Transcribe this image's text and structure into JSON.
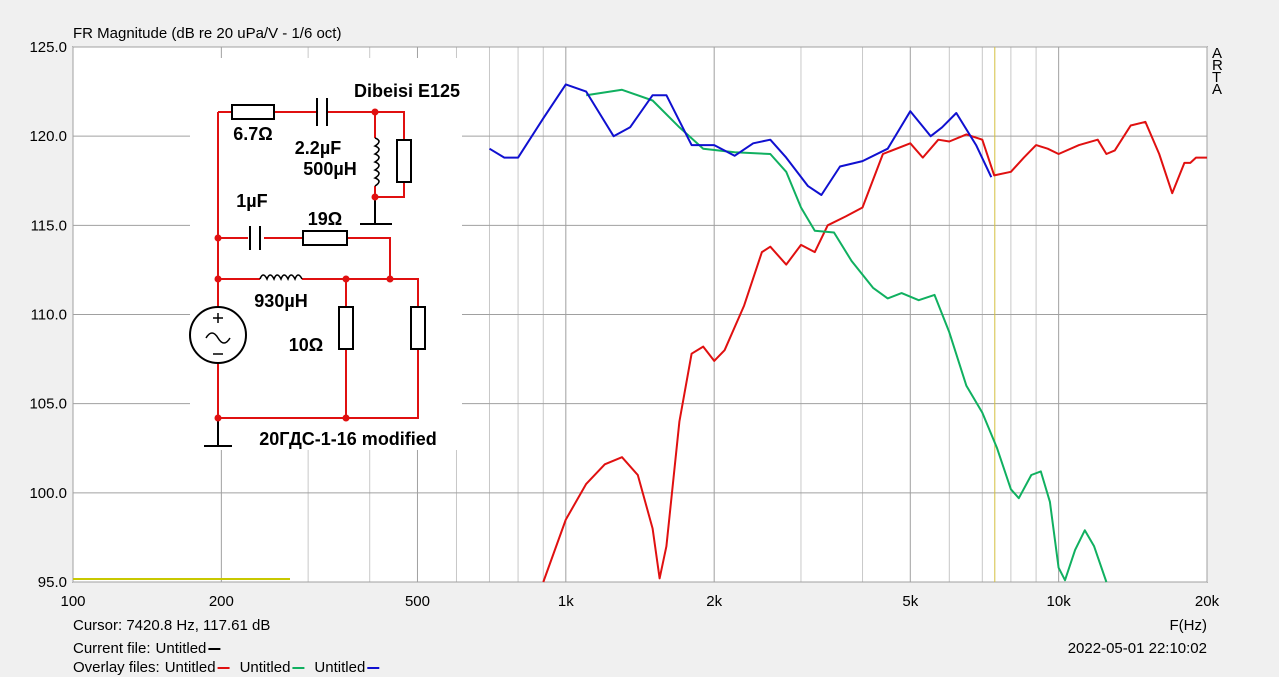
{
  "chart_data": {
    "type": "line",
    "title": "FR Magnitude (dB re 20 uPa/V - 1/6 oct)",
    "xlabel": "F(Hz)",
    "xscale": "log",
    "xlim": [
      100,
      20000
    ],
    "ylim": [
      95,
      125
    ],
    "xticks": [
      100,
      200,
      500,
      {
        "value": 1000,
        "label": "1k"
      },
      {
        "value": 2000,
        "label": "2k"
      },
      {
        "value": 5000,
        "label": "5k"
      },
      {
        "value": 10000,
        "label": "10k"
      },
      {
        "value": 20000,
        "label": "20k"
      }
    ],
    "x_minor_grid": [
      300,
      400,
      600,
      700,
      800,
      900,
      3000,
      4000,
      6000,
      7000,
      8000,
      9000
    ],
    "yticks": [
      {
        "value": 95,
        "label": "95.0"
      },
      {
        "value": 100,
        "label": "100.0"
      },
      {
        "value": 105,
        "label": "105.0"
      },
      {
        "value": 110,
        "label": "110.0"
      },
      {
        "value": 115,
        "label": "115.0"
      },
      {
        "value": 120,
        "label": "120.0"
      },
      {
        "value": 125,
        "label": "125.0"
      }
    ],
    "grid": true,
    "cursor_x": 7420.8,
    "cursor_color": "#d4c040",
    "series": [
      {
        "name": "Untitled",
        "color": "#e01010",
        "x": [
          900,
          1000,
          1100,
          1200,
          1300,
          1400,
          1500,
          1550,
          1600,
          1700,
          1800,
          1900,
          2000,
          2100,
          2300,
          2500,
          2600,
          2800,
          3000,
          3200,
          3400,
          3700,
          4000,
          4400,
          5000,
          5300,
          5700,
          6000,
          6500,
          7000,
          7400,
          8000,
          8500,
          9000,
          9500,
          10000,
          11000,
          12000,
          12500,
          13000,
          14000,
          15000,
          16000,
          17000,
          18000,
          18500,
          19000,
          20000
        ],
        "values": [
          95,
          98.5,
          100.5,
          101.6,
          102,
          101,
          98,
          95.2,
          97,
          104,
          107.8,
          108.2,
          107.4,
          108,
          110.5,
          113.5,
          113.8,
          112.8,
          113.9,
          113.5,
          115,
          115.5,
          116,
          119,
          119.6,
          118.8,
          119.8,
          119.7,
          120.1,
          119.8,
          117.8,
          118,
          118.8,
          119.5,
          119.3,
          119,
          119.5,
          119.8,
          119,
          119.2,
          120.6,
          120.8,
          119,
          116.8,
          118.5,
          118.5,
          118.8,
          118.8
        ]
      },
      {
        "name": "Untitled",
        "color": "#10b060",
        "x": [
          1100,
          1300,
          1500,
          1700,
          1900,
          2200,
          2600,
          2800,
          3000,
          3200,
          3500,
          3800,
          4200,
          4500,
          4800,
          5200,
          5600,
          6000,
          6500,
          7000,
          7500,
          8000,
          8300,
          8800,
          9200,
          9600,
          10000,
          10300,
          10800,
          11300,
          11800,
          12500
        ],
        "values": [
          122.3,
          122.6,
          122,
          120.5,
          119.3,
          119.1,
          119,
          118,
          116,
          114.7,
          114.6,
          113,
          111.5,
          110.9,
          111.2,
          110.8,
          111.1,
          109,
          106,
          104.5,
          102.5,
          100.2,
          99.7,
          101,
          101.2,
          99.5,
          95.8,
          95.1,
          96.8,
          97.9,
          97,
          95
        ]
      },
      {
        "name": "Untitled",
        "color": "#1010d0",
        "x": [
          700,
          750,
          800,
          900,
          1000,
          1100,
          1250,
          1350,
          1500,
          1600,
          1800,
          2000,
          2200,
          2400,
          2600,
          2800,
          3100,
          3300,
          3600,
          4000,
          4500,
          5000,
          5500,
          5800,
          6200,
          6800,
          7300
        ],
        "values": [
          119.3,
          118.8,
          118.8,
          121,
          122.9,
          122.5,
          120,
          120.5,
          122.3,
          122.3,
          119.5,
          119.5,
          118.9,
          119.6,
          119.8,
          118.8,
          117.2,
          116.7,
          118.3,
          118.6,
          119.3,
          121.4,
          120,
          120.5,
          121.3,
          119.5,
          117.7
        ]
      }
    ]
  },
  "status": {
    "cursor": "Cursor: 7420.8 Hz, 117.61 dB",
    "current_file_label": "Current file:",
    "current_file": "Untitled",
    "overlay_label": "Overlay files:",
    "timestamp": "2022-05-01   22:10:02",
    "brand": "ARTA"
  },
  "circuit": {
    "title": "Dibeisi E125",
    "r1": "6.7Ω",
    "c1": "2.2µF",
    "l1": "500µH",
    "c2": "1µF",
    "r2": "19Ω",
    "l2": "930µH",
    "r3": "10Ω",
    "subtitle": "20ГДС-1-16 modified"
  }
}
